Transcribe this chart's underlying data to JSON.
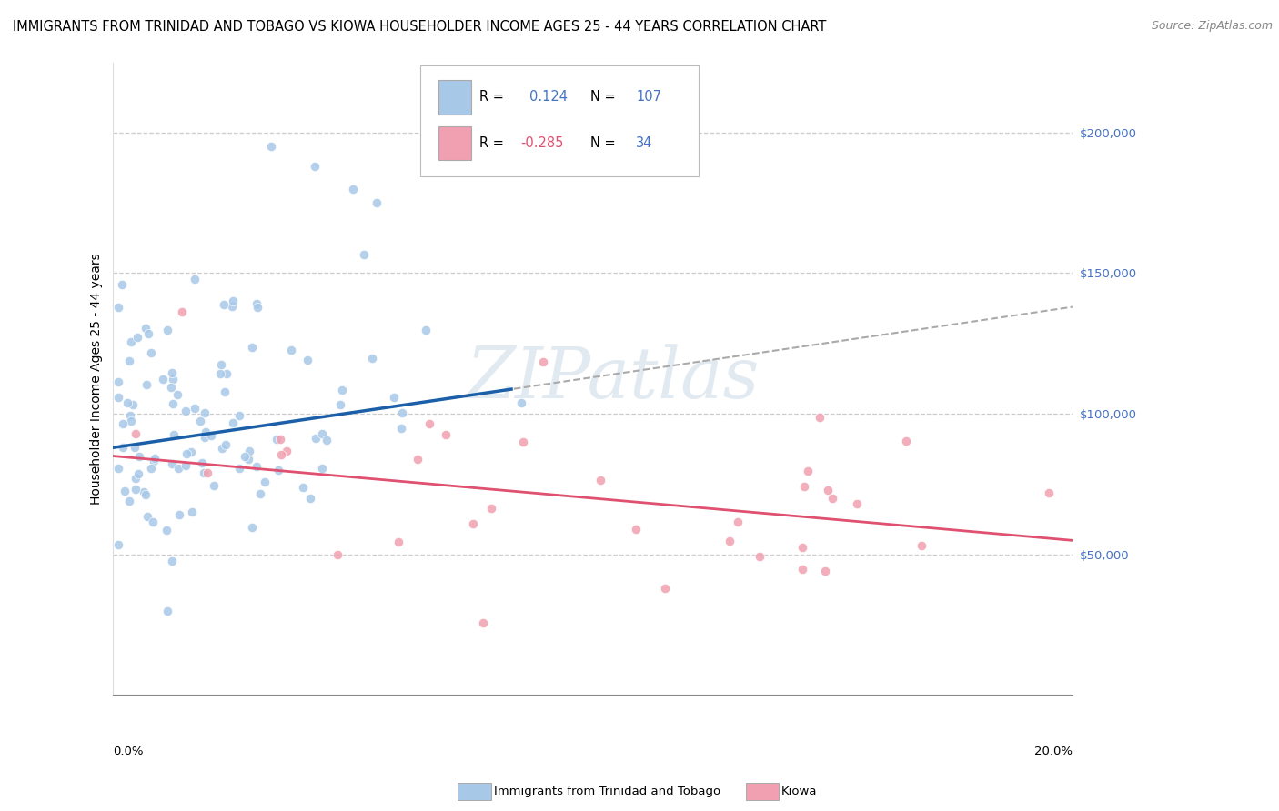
{
  "title": "IMMIGRANTS FROM TRINIDAD AND TOBAGO VS KIOWA HOUSEHOLDER INCOME AGES 25 - 44 YEARS CORRELATION CHART",
  "source": "Source: ZipAtlas.com",
  "ylabel": "Householder Income Ages 25 - 44 years",
  "xmin": 0.0,
  "xmax": 0.2,
  "ymin": 0,
  "ymax": 225000,
  "r_blue": 0.124,
  "n_blue": 107,
  "r_pink": -0.285,
  "n_pink": 34,
  "blue_color": "#a8c8e8",
  "pink_color": "#f0a0b0",
  "trendline_blue_color": "#1a5fa8",
  "trendline_pink_color": "#e05070",
  "trendline_gray_color": "#aaaaaa",
  "ytick_color": "#4472c4",
  "legend_label_blue": "Immigrants from Trinidad and Tobago",
  "legend_label_pink": "Kiowa",
  "watermark": "ZIPatlas",
  "background_color": "#ffffff",
  "title_fontsize": 10.5,
  "source_fontsize": 9,
  "ylabel_fontsize": 10,
  "tick_label_fontsize": 9.5,
  "legend_fontsize": 10.5
}
